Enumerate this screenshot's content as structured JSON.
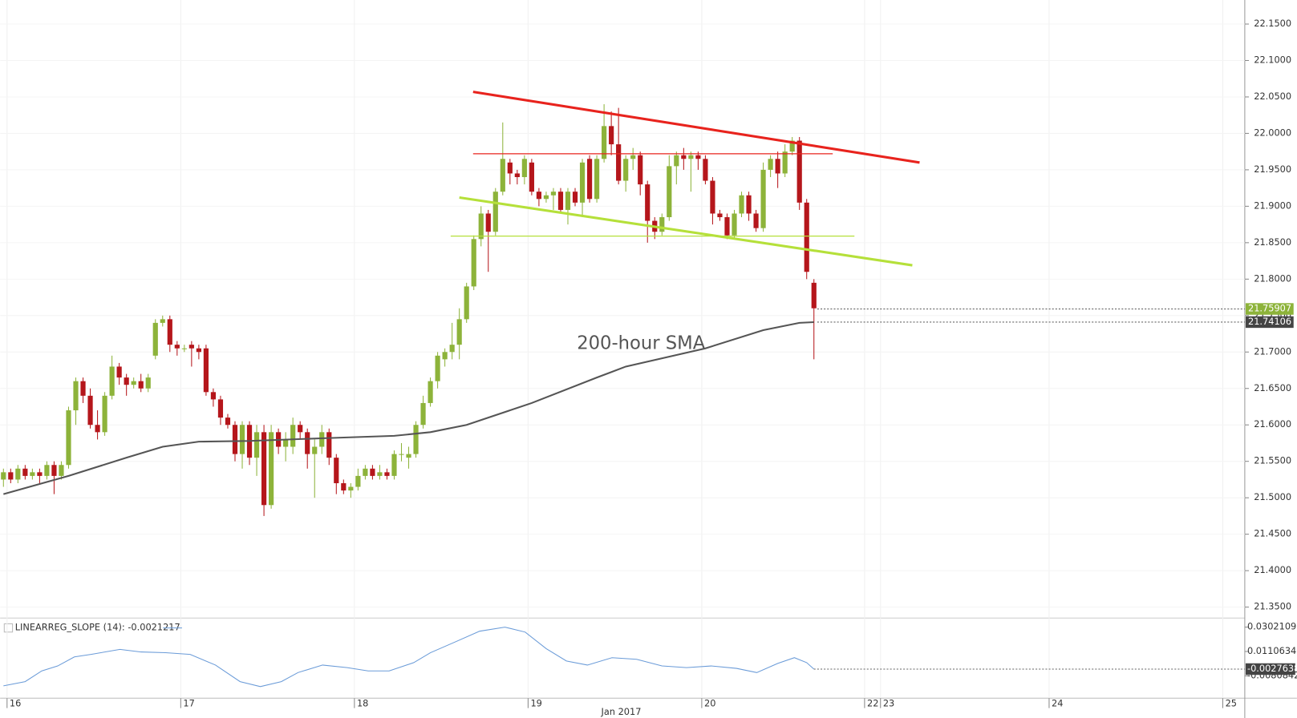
{
  "chart_data": [
    {
      "type": "candlestick",
      "up_color": "#8db33a",
      "down_color": "#b5161b",
      "grid": true,
      "xlim": [
        -0.46,
        171.54
      ],
      "xticks": [
        {
          "value": 0.5,
          "label": "16"
        },
        {
          "value": 24.5,
          "label": "17"
        },
        {
          "value": 48.5,
          "label": "18"
        },
        {
          "value": 72.5,
          "label": "19"
        },
        {
          "value": 96.5,
          "label": "20"
        },
        {
          "value": 119,
          "label": "22"
        },
        {
          "value": 121.2,
          "label": "23"
        },
        {
          "value": 144.5,
          "label": "24"
        },
        {
          "value": 168.5,
          "label": "25"
        }
      ],
      "x_label": "Jan 2017",
      "ylim": [
        21.335,
        22.183
      ],
      "yticks": [
        {
          "value": 21.35,
          "label": "21.3500"
        },
        {
          "value": 21.4,
          "label": "21.4000"
        },
        {
          "value": 21.45,
          "label": "21.4500"
        },
        {
          "value": 21.5,
          "label": "21.5000"
        },
        {
          "value": 21.55,
          "label": "21.5500"
        },
        {
          "value": 21.6,
          "label": "21.6000"
        },
        {
          "value": 21.65,
          "label": "21.6500"
        },
        {
          "value": 21.7,
          "label": "21.7000"
        },
        {
          "value": 21.75,
          "label": "21.7500"
        },
        {
          "value": 21.8,
          "label": "21.8000"
        },
        {
          "value": 21.85,
          "label": "21.8500"
        },
        {
          "value": 21.9,
          "label": "21.9000"
        },
        {
          "value": 21.95,
          "label": "21.9500"
        },
        {
          "value": 22.0,
          "label": "22.0000"
        },
        {
          "value": 22.05,
          "label": "22.0500"
        },
        {
          "value": 22.1,
          "label": "22.1000"
        },
        {
          "value": 22.15,
          "label": "22.1500"
        }
      ],
      "ohlc": [
        [
          21.525,
          21.54,
          21.515,
          21.535
        ],
        [
          21.535,
          21.54,
          21.52,
          21.525
        ],
        [
          21.525,
          21.545,
          21.52,
          21.54
        ],
        [
          21.54,
          21.545,
          21.525,
          21.53
        ],
        [
          21.53,
          21.54,
          21.525,
          21.535
        ],
        [
          21.535,
          21.54,
          21.52,
          21.53
        ],
        [
          21.53,
          21.55,
          21.525,
          21.545
        ],
        [
          21.545,
          21.55,
          21.505,
          21.53
        ],
        [
          21.53,
          21.55,
          21.525,
          21.545
        ],
        [
          21.545,
          21.625,
          21.54,
          21.62
        ],
        [
          21.62,
          21.665,
          21.6,
          21.66
        ],
        [
          21.66,
          21.665,
          21.63,
          21.64
        ],
        [
          21.64,
          21.65,
          21.595,
          21.6
        ],
        [
          21.6,
          21.62,
          21.58,
          21.59
        ],
        [
          21.59,
          21.645,
          21.585,
          21.64
        ],
        [
          21.64,
          21.695,
          21.635,
          21.68
        ],
        [
          21.68,
          21.685,
          21.655,
          21.665
        ],
        [
          21.665,
          21.67,
          21.64,
          21.655
        ],
        [
          21.655,
          21.665,
          21.65,
          21.66
        ],
        [
          21.66,
          21.67,
          21.645,
          21.65
        ],
        [
          21.65,
          21.67,
          21.645,
          21.665
        ],
        [
          21.695,
          21.745,
          21.69,
          21.74
        ],
        [
          21.74,
          21.75,
          21.735,
          21.745
        ],
        [
          21.745,
          21.75,
          21.7,
          21.71
        ],
        [
          21.71,
          21.715,
          21.695,
          21.705
        ],
        [
          21.705,
          21.71,
          21.7,
          21.705
        ],
        [
          21.71,
          21.715,
          21.68,
          21.705
        ],
        [
          21.705,
          21.71,
          21.69,
          21.7
        ],
        [
          21.705,
          21.71,
          21.64,
          21.645
        ],
        [
          21.645,
          21.65,
          21.625,
          21.635
        ],
        [
          21.635,
          21.64,
          21.6,
          21.61
        ],
        [
          21.61,
          21.615,
          21.595,
          21.6
        ],
        [
          21.6,
          21.605,
          21.55,
          21.56
        ],
        [
          21.56,
          21.605,
          21.54,
          21.6
        ],
        [
          21.6,
          21.605,
          21.545,
          21.555
        ],
        [
          21.555,
          21.6,
          21.53,
          21.59
        ],
        [
          21.59,
          21.6,
          21.475,
          21.49
        ],
        [
          21.49,
          21.6,
          21.485,
          21.59
        ],
        [
          21.59,
          21.595,
          21.56,
          21.57
        ],
        [
          21.57,
          21.59,
          21.55,
          21.58
        ],
        [
          21.57,
          21.61,
          21.56,
          21.6
        ],
        [
          21.6,
          21.605,
          21.58,
          21.59
        ],
        [
          21.59,
          21.595,
          21.54,
          21.56
        ],
        [
          21.56,
          21.58,
          21.5,
          21.57
        ],
        [
          21.57,
          21.6,
          21.56,
          21.59
        ],
        [
          21.59,
          21.595,
          21.545,
          21.555
        ],
        [
          21.555,
          21.56,
          21.505,
          21.52
        ],
        [
          21.52,
          21.525,
          21.505,
          21.51
        ],
        [
          21.51,
          21.52,
          21.5,
          21.515
        ],
        [
          21.515,
          21.54,
          21.51,
          21.53
        ],
        [
          21.53,
          21.545,
          21.525,
          21.54
        ],
        [
          21.54,
          21.545,
          21.525,
          21.53
        ],
        [
          21.53,
          21.545,
          21.525,
          21.535
        ],
        [
          21.535,
          21.54,
          21.525,
          21.53
        ],
        [
          21.53,
          21.565,
          21.525,
          21.56
        ],
        [
          21.56,
          21.575,
          21.55,
          21.56
        ],
        [
          21.555,
          21.57,
          21.54,
          21.56
        ],
        [
          21.56,
          21.605,
          21.555,
          21.6
        ],
        [
          21.6,
          21.64,
          21.595,
          21.63
        ],
        [
          21.63,
          21.665,
          21.625,
          21.66
        ],
        [
          21.66,
          21.7,
          21.65,
          21.695
        ],
        [
          21.69,
          21.705,
          21.68,
          21.7
        ],
        [
          21.7,
          21.74,
          21.69,
          21.71
        ],
        [
          21.71,
          21.76,
          21.69,
          21.745
        ],
        [
          21.745,
          21.795,
          21.74,
          21.79
        ],
        [
          21.79,
          21.86,
          21.785,
          21.855
        ],
        [
          21.855,
          21.9,
          21.845,
          21.89
        ],
        [
          21.89,
          21.895,
          21.81,
          21.865
        ],
        [
          21.865,
          21.925,
          21.86,
          21.92
        ],
        [
          21.92,
          22.015,
          21.915,
          21.965
        ],
        [
          21.96,
          21.965,
          21.93,
          21.945
        ],
        [
          21.945,
          21.95,
          21.93,
          21.94
        ],
        [
          21.94,
          21.97,
          21.93,
          21.965
        ],
        [
          21.96,
          21.965,
          21.915,
          21.92
        ],
        [
          21.92,
          21.925,
          21.9,
          21.91
        ],
        [
          21.91,
          21.92,
          21.905,
          21.915
        ],
        [
          21.915,
          21.925,
          21.895,
          21.92
        ],
        [
          21.92,
          21.925,
          21.89,
          21.895
        ],
        [
          21.895,
          21.925,
          21.875,
          21.92
        ],
        [
          21.92,
          21.925,
          21.9,
          21.905
        ],
        [
          21.905,
          21.965,
          21.885,
          21.96
        ],
        [
          21.965,
          21.97,
          21.905,
          21.91
        ],
        [
          21.91,
          21.97,
          21.905,
          21.965
        ],
        [
          21.965,
          22.04,
          21.96,
          22.01
        ],
        [
          22.01,
          22.03,
          21.97,
          21.985
        ],
        [
          21.985,
          22.035,
          21.93,
          21.935
        ],
        [
          21.935,
          21.97,
          21.92,
          21.965
        ],
        [
          21.965,
          21.98,
          21.95,
          21.97
        ],
        [
          21.97,
          21.975,
          21.915,
          21.93
        ],
        [
          21.93,
          21.935,
          21.85,
          21.88
        ],
        [
          21.88,
          21.885,
          21.855,
          21.865
        ],
        [
          21.865,
          21.89,
          21.86,
          21.885
        ],
        [
          21.885,
          21.97,
          21.88,
          21.955
        ],
        [
          21.955,
          21.975,
          21.93,
          21.97
        ],
        [
          21.97,
          21.98,
          21.95,
          21.965
        ],
        [
          21.965,
          21.975,
          21.92,
          21.97
        ],
        [
          21.97,
          21.975,
          21.95,
          21.965
        ],
        [
          21.965,
          21.97,
          21.93,
          21.935
        ],
        [
          21.935,
          21.94,
          21.875,
          21.89
        ],
        [
          21.89,
          21.895,
          21.88,
          21.885
        ],
        [
          21.885,
          21.89,
          21.855,
          21.86
        ],
        [
          21.86,
          21.895,
          21.855,
          21.89
        ],
        [
          21.89,
          21.92,
          21.885,
          21.915
        ],
        [
          21.915,
          21.92,
          21.88,
          21.89
        ],
        [
          21.89,
          21.895,
          21.865,
          21.87
        ],
        [
          21.87,
          21.96,
          21.865,
          21.95
        ],
        [
          21.95,
          21.97,
          21.94,
          21.965
        ],
        [
          21.965,
          21.975,
          21.925,
          21.945
        ],
        [
          21.945,
          21.985,
          21.94,
          21.975
        ],
        [
          21.975,
          21.995,
          21.97,
          21.99
        ],
        [
          21.99,
          21.995,
          21.895,
          21.905
        ],
        [
          21.905,
          21.91,
          21.8,
          21.81
        ],
        [
          21.795,
          21.8,
          21.69,
          21.76
        ]
      ],
      "sma": {
        "name": "200-hour SMA",
        "color": "#555555",
        "x": [
          0,
          9,
          17,
          22,
          27,
          34,
          45,
          54,
          59,
          64,
          73,
          82,
          86,
          97,
          105,
          110,
          112
        ],
        "values": [
          21.505,
          21.53,
          21.555,
          21.57,
          21.577,
          21.578,
          21.582,
          21.585,
          21.59,
          21.6,
          21.63,
          21.665,
          21.68,
          21.705,
          21.73,
          21.74,
          21.741
        ]
      },
      "trendlines": [
        {
          "color": "#e8231d",
          "width": 3,
          "x": [
            64.9,
            126.6
          ],
          "values": [
            22.057,
            21.96
          ]
        },
        {
          "color": "#e8231d",
          "width": 1.2,
          "x": [
            64.9,
            114.6
          ],
          "values": [
            21.972,
            21.972
          ]
        },
        {
          "color": "#b5e03a",
          "width": 3,
          "x": [
            63,
            125.6
          ],
          "values": [
            21.912,
            21.819
          ]
        },
        {
          "color": "#b5e03a",
          "width": 1.2,
          "x": [
            61.8,
            117.6
          ],
          "values": [
            21.859,
            21.859
          ]
        }
      ],
      "price_tags": [
        {
          "value": 21.75907,
          "color": "#8db33a"
        },
        {
          "value": 21.74106,
          "color": "#444444"
        }
      ]
    },
    {
      "type": "line",
      "title": "LINEARREG_SLOPE (14): -0.0021217",
      "ylim": [
        -0.02561,
        0.03735
      ],
      "yticks": [
        0.0302109,
        0.0110634,
        -0.0080842
      ],
      "series": [
        {
          "color": "#6a9bd8",
          "x": [
            0,
            3,
            5.3,
            7.5,
            9.8,
            12.1,
            16.1,
            19,
            22.4,
            25.8,
            29.3,
            32.7,
            35.5,
            38.4,
            40.7,
            44.1,
            47.5,
            50.4,
            53.3,
            56.7,
            59,
            62.4,
            65.8,
            69.3,
            72.1,
            75,
            77.8,
            80.7,
            84.1,
            87.5,
            91,
            94.4,
            97.8,
            101.3,
            104.1,
            107,
            109.3,
            111,
            112
          ],
          "values": [
            -0.0159,
            -0.0126,
            -0.0042,
            -0.0003,
            0.0068,
            0.0088,
            0.0127,
            0.0107,
            0.0101,
            0.0088,
            0.0004,
            -0.0126,
            -0.0165,
            -0.0126,
            -0.0055,
            0.0004,
            -0.0016,
            -0.0042,
            -0.0042,
            0.0023,
            0.0101,
            0.0185,
            0.027,
            0.0302,
            0.0263,
            0.0133,
            0.0036,
            0.0004,
            0.0062,
            0.0049,
            -0.0003,
            -0.0016,
            -0.0003,
            -0.0022,
            -0.0055,
            0.0017,
            0.0062,
            0.0023,
            -0.0028
          ]
        }
      ],
      "tag": {
        "value": -0.0027638,
        "color": "#444444"
      }
    }
  ]
}
